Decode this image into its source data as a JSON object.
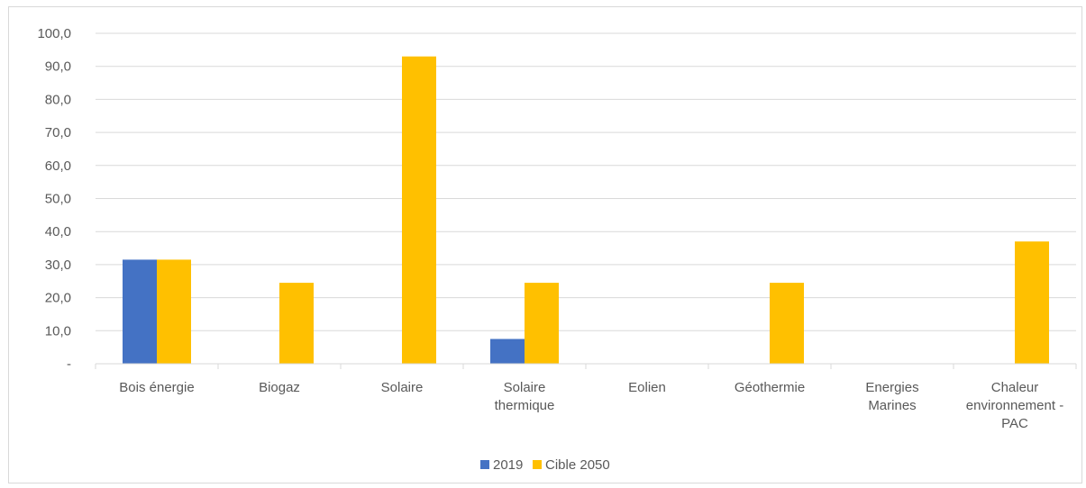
{
  "chart_data": {
    "type": "bar",
    "title": "",
    "xlabel": "",
    "ylabel": "",
    "ylim": [
      0,
      100
    ],
    "y_ticks": [
      "-",
      "10,0",
      "20,0",
      "30,0",
      "40,0",
      "50,0",
      "60,0",
      "70,0",
      "80,0",
      "90,0",
      "100,0"
    ],
    "grid": true,
    "legend_position": "bottom",
    "categories": [
      [
        "Bois énergie"
      ],
      [
        "Biogaz"
      ],
      [
        "Solaire"
      ],
      [
        "Solaire",
        "thermique"
      ],
      [
        "Eolien"
      ],
      [
        "Géothermie"
      ],
      [
        "Energies",
        "Marines"
      ],
      [
        "Chaleur",
        "environnement -",
        "PAC"
      ]
    ],
    "series": [
      {
        "name": "2019",
        "color": "#4472c4",
        "values": [
          31.5,
          0,
          0,
          7.5,
          0,
          0,
          0,
          0
        ]
      },
      {
        "name": "Cible 2050",
        "color": "#ffc000",
        "values": [
          31.5,
          24.5,
          93.0,
          24.5,
          0,
          24.5,
          0,
          37.0
        ]
      }
    ]
  }
}
